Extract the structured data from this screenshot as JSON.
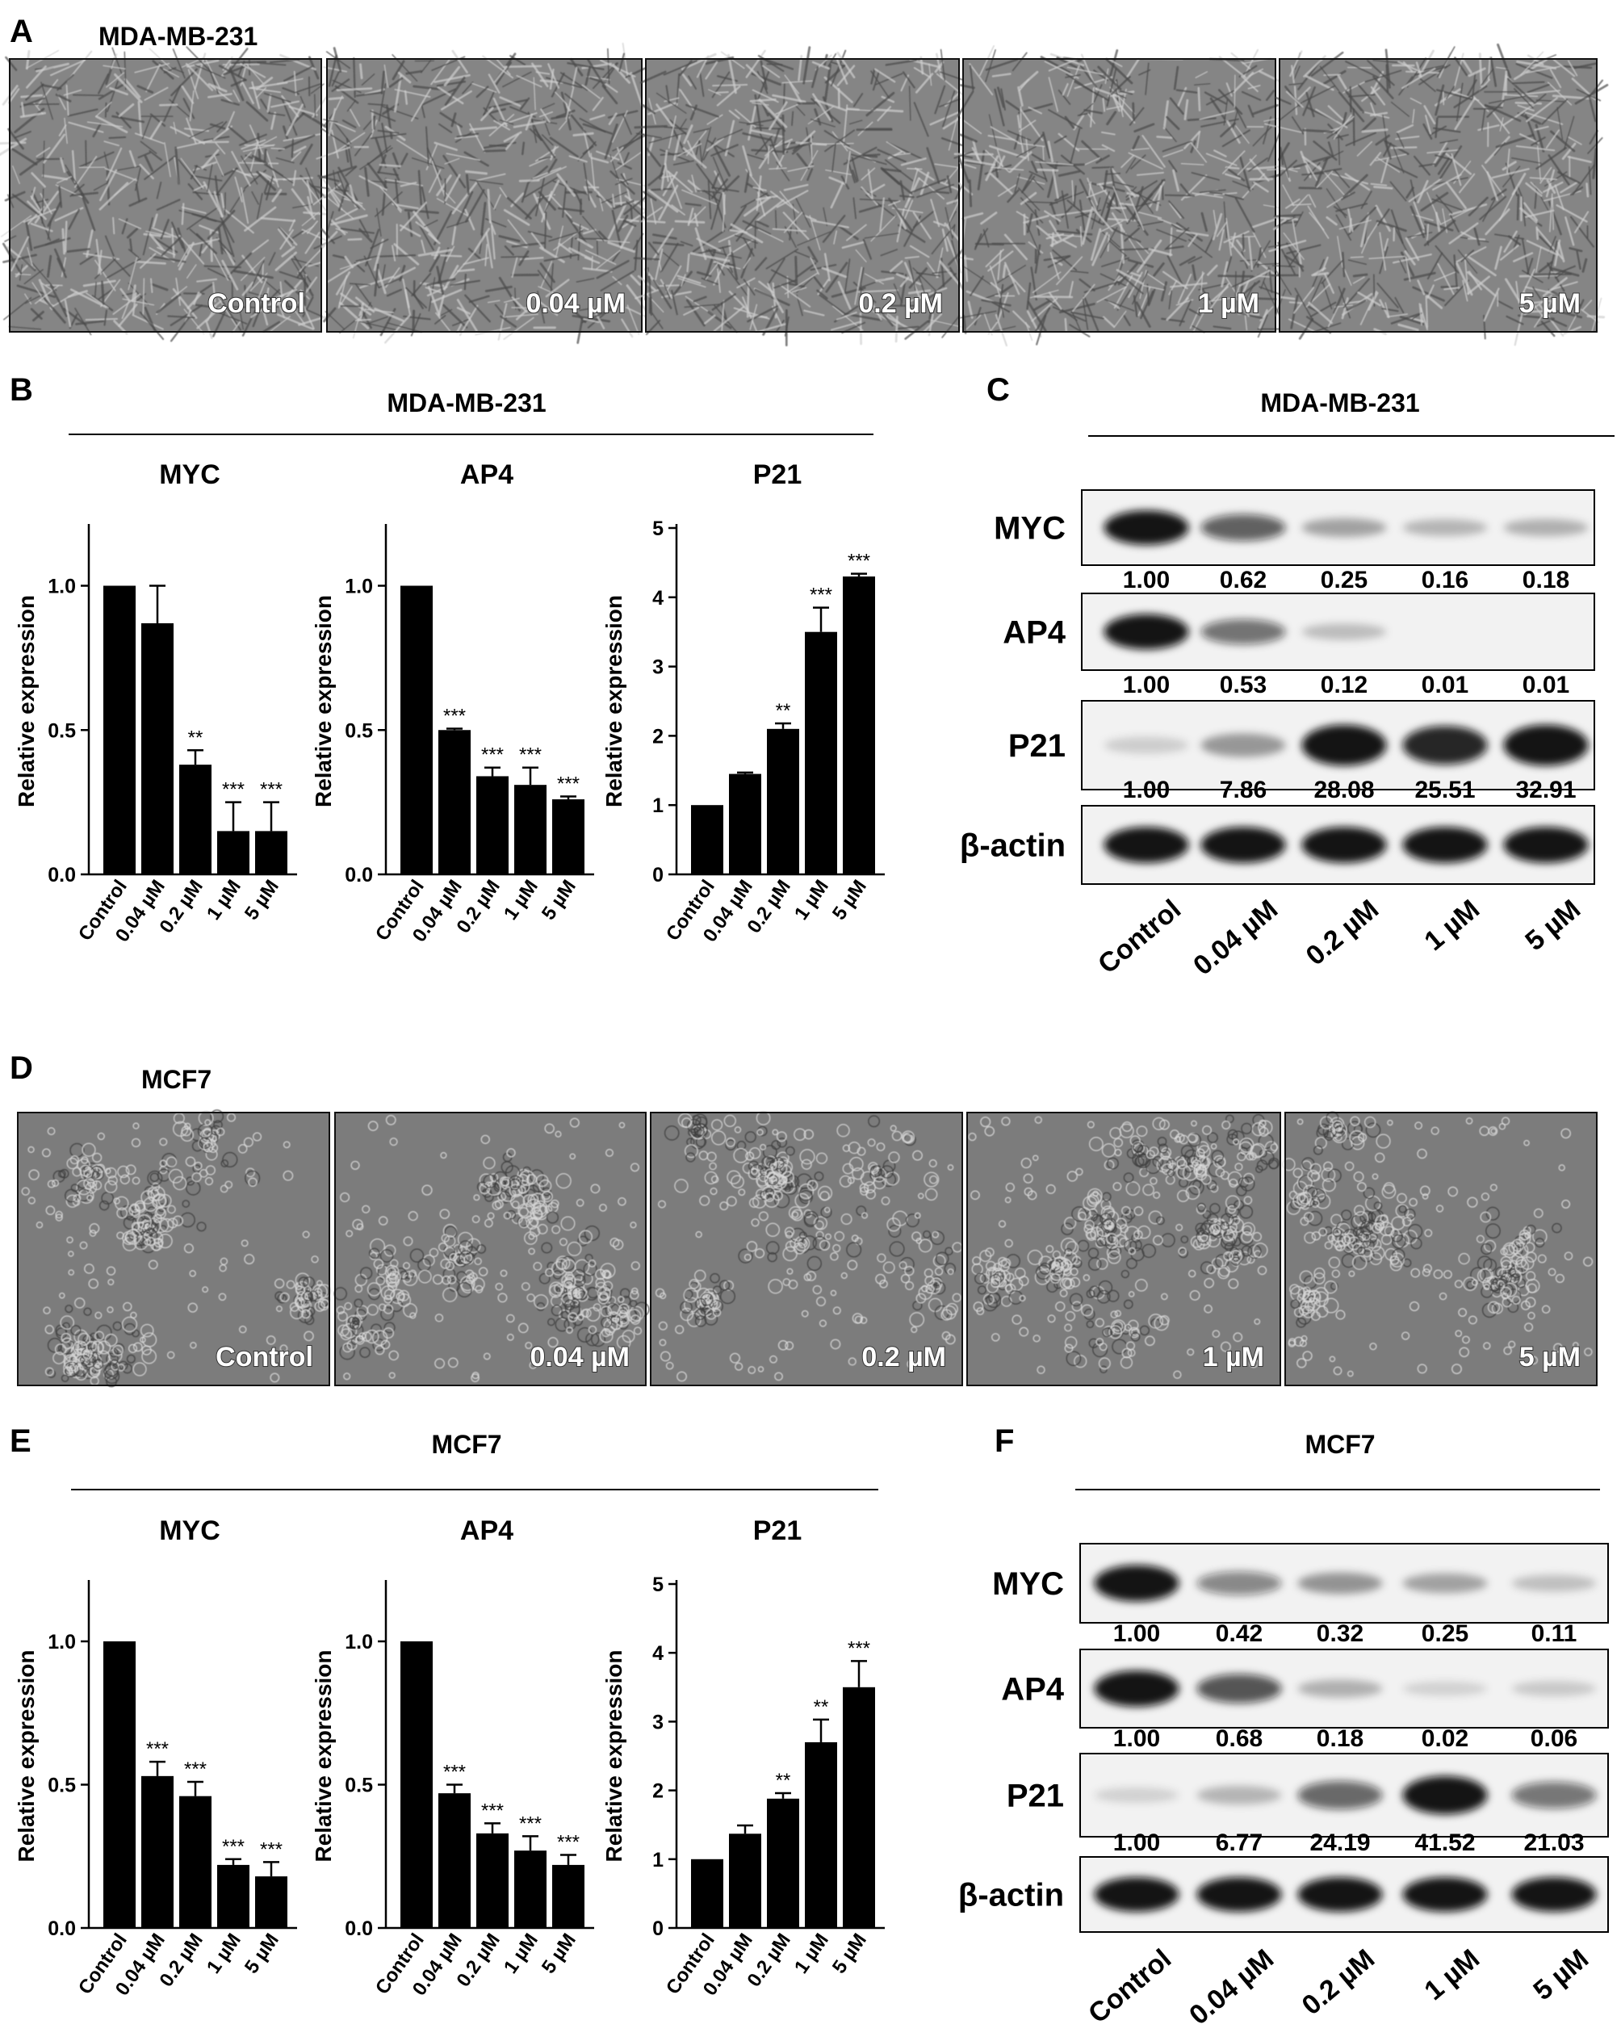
{
  "doses": [
    "Control",
    "0.04 µM",
    "0.2 µM",
    "1 µM",
    "5 µM"
  ],
  "ylabel": "Relative expression",
  "sections": [
    {
      "images": {
        "letter": "A",
        "cell_line": "MDA-MB-231",
        "style": "elongated"
      },
      "charts": {
        "letter": "B",
        "cell_line": "MDA-MB-231"
      },
      "blot": {
        "letter": "C",
        "cell_line": "MDA-MB-231"
      }
    },
    {
      "images": {
        "letter": "D",
        "cell_line": "MCF7",
        "style": "clustered"
      },
      "charts": {
        "letter": "E",
        "cell_line": "MCF7"
      },
      "blot": {
        "letter": "F",
        "cell_line": "MCF7"
      }
    }
  ],
  "chart_data": [
    {
      "type": "bar",
      "panel": "B",
      "cell_line": "MDA-MB-231",
      "title": "MYC",
      "ylabel": "Relative expression",
      "categories": [
        "Control",
        "0.04 µM",
        "0.2 µM",
        "1 µM",
        "5 µM"
      ],
      "values": [
        1.0,
        0.87,
        0.38,
        0.15,
        0.15
      ],
      "errors": [
        0,
        0.13,
        0.05,
        0.1,
        0.1
      ],
      "significance": [
        "",
        "",
        "**",
        "***",
        "***"
      ],
      "ylim": [
        0,
        1.2
      ],
      "yticks": [
        0.0,
        0.5,
        1.0
      ],
      "yticklabels": [
        "0.0",
        "0.5",
        "1.0"
      ]
    },
    {
      "type": "bar",
      "panel": "B",
      "cell_line": "MDA-MB-231",
      "title": "AP4",
      "ylabel": "Relative expression",
      "categories": [
        "Control",
        "0.04 µM",
        "0.2 µM",
        "1 µM",
        "5 µM"
      ],
      "values": [
        1.0,
        0.5,
        0.34,
        0.31,
        0.26
      ],
      "errors": [
        0,
        0.005,
        0.03,
        0.06,
        0.01
      ],
      "significance": [
        "",
        "***",
        "***",
        "***",
        "***"
      ],
      "ylim": [
        0,
        1.2
      ],
      "yticks": [
        0.0,
        0.5,
        1.0
      ],
      "yticklabels": [
        "0.0",
        "0.5",
        "1.0"
      ]
    },
    {
      "type": "bar",
      "panel": "B",
      "cell_line": "MDA-MB-231",
      "title": "P21",
      "ylabel": "Relative expression",
      "categories": [
        "Control",
        "0.04 µM",
        "0.2 µM",
        "1 µM",
        "5 µM"
      ],
      "values": [
        1.0,
        1.45,
        2.1,
        3.5,
        4.3
      ],
      "errors": [
        0,
        0.02,
        0.08,
        0.35,
        0.04
      ],
      "significance": [
        "",
        "",
        "**",
        "***",
        "***"
      ],
      "ylim": [
        0,
        5
      ],
      "yticks": [
        0,
        1,
        2,
        3,
        4,
        5
      ],
      "yticklabels": [
        "0",
        "1",
        "2",
        "3",
        "4",
        "5"
      ]
    },
    {
      "type": "bar",
      "panel": "E",
      "cell_line": "MCF7",
      "title": "MYC",
      "ylabel": "Relative expression",
      "categories": [
        "Control",
        "0.04 µM",
        "0.2 µM",
        "1 µM",
        "5 µM"
      ],
      "values": [
        1.0,
        0.53,
        0.46,
        0.22,
        0.18
      ],
      "errors": [
        0,
        0.05,
        0.05,
        0.02,
        0.05
      ],
      "significance": [
        "",
        "***",
        "***",
        "***",
        "***"
      ],
      "ylim": [
        0,
        1.2
      ],
      "yticks": [
        0.0,
        0.5,
        1.0
      ],
      "yticklabels": [
        "0.0",
        "0.5",
        "1.0"
      ]
    },
    {
      "type": "bar",
      "panel": "E",
      "cell_line": "MCF7",
      "title": "AP4",
      "ylabel": "Relative expression",
      "categories": [
        "Control",
        "0.04 µM",
        "0.2 µM",
        "1 µM",
        "5 µM"
      ],
      "values": [
        1.0,
        0.47,
        0.33,
        0.27,
        0.22
      ],
      "errors": [
        0,
        0.03,
        0.035,
        0.05,
        0.035
      ],
      "significance": [
        "",
        "***",
        "***",
        "***",
        "***"
      ],
      "ylim": [
        0,
        1.2
      ],
      "yticks": [
        0.0,
        0.5,
        1.0
      ],
      "yticklabels": [
        "0.0",
        "0.5",
        "1.0"
      ]
    },
    {
      "type": "bar",
      "panel": "E",
      "cell_line": "MCF7",
      "title": "P21",
      "ylabel": "Relative expression",
      "categories": [
        "Control",
        "0.04 µM",
        "0.2 µM",
        "1 µM",
        "5 µM"
      ],
      "values": [
        1.0,
        1.37,
        1.88,
        2.7,
        3.5
      ],
      "errors": [
        0,
        0.12,
        0.08,
        0.33,
        0.38
      ],
      "significance": [
        "",
        "",
        "**",
        "**",
        "***"
      ],
      "ylim": [
        0,
        5
      ],
      "yticks": [
        0,
        1,
        2,
        3,
        4,
        5
      ],
      "yticklabels": [
        "0",
        "1",
        "2",
        "3",
        "4",
        "5"
      ]
    }
  ],
  "blots": [
    {
      "panel": "C",
      "cell_line": "MDA-MB-231",
      "lanes": [
        "Control",
        "0.04 µM",
        "0.2 µM",
        "1 µM",
        "5 µM"
      ],
      "proteins": [
        {
          "name": "MYC",
          "values": [
            "1.00",
            "0.62",
            "0.25",
            "0.16",
            "0.18"
          ],
          "intensity": [
            1.0,
            0.62,
            0.25,
            0.16,
            0.18
          ]
        },
        {
          "name": "AP4",
          "values": [
            "1.00",
            "0.53",
            "0.12",
            "0.01",
            "0.01"
          ],
          "intensity": [
            1.0,
            0.53,
            0.12,
            0.01,
            0.01
          ]
        },
        {
          "name": "P21",
          "values": [
            "1.00",
            "7.86",
            "28.08",
            "25.51",
            "32.91"
          ],
          "intensity": [
            0.04,
            0.3,
            1.0,
            0.91,
            1.0
          ]
        },
        {
          "name": "β-actin",
          "values": [],
          "intensity": [
            1.0,
            1.0,
            1.0,
            1.0,
            1.0
          ]
        }
      ]
    },
    {
      "panel": "F",
      "cell_line": "MCF7",
      "lanes": [
        "Control",
        "0.04 µM",
        "0.2 µM",
        "1 µM",
        "5 µM"
      ],
      "proteins": [
        {
          "name": "MYC",
          "values": [
            "1.00",
            "0.42",
            "0.32",
            "0.25",
            "0.11"
          ],
          "intensity": [
            1.0,
            0.42,
            0.32,
            0.25,
            0.11
          ]
        },
        {
          "name": "AP4",
          "values": [
            "1.00",
            "0.68",
            "0.18",
            "0.02",
            "0.06"
          ],
          "intensity": [
            1.0,
            0.68,
            0.18,
            0.02,
            0.06
          ]
        },
        {
          "name": "P21",
          "values": [
            "1.00",
            "6.77",
            "24.19",
            "41.52",
            "21.03"
          ],
          "intensity": [
            0.02,
            0.16,
            0.58,
            1.0,
            0.51
          ]
        },
        {
          "name": "β-actin",
          "values": [],
          "intensity": [
            1.0,
            1.0,
            1.0,
            1.0,
            1.0
          ]
        }
      ]
    }
  ]
}
